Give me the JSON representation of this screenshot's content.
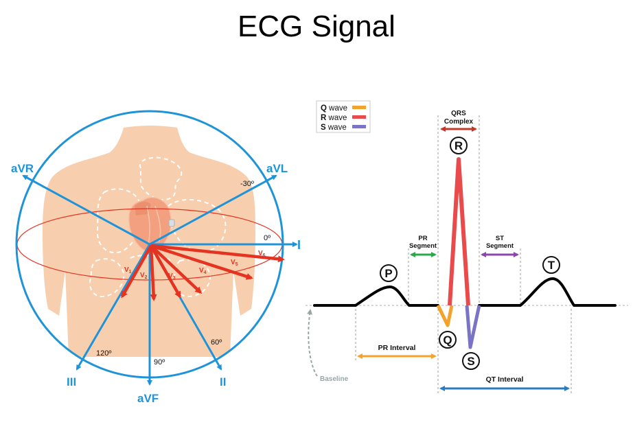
{
  "title": "ECG Signal",
  "colors": {
    "lead_blue": "#1f93d8",
    "chest_red": "#e53322",
    "skin": "#f7cfae",
    "q_wave": "#f3a32c",
    "r_wave": "#e94a4c",
    "s_wave": "#7b73c6",
    "pr_segment": "#2aa84a",
    "st_segment": "#8e44ad",
    "qrs_complex": "#c0392b",
    "pr_interval": "#f3a32c",
    "qt_interval": "#2b7bbf",
    "baseline": "#9aa5a5"
  },
  "leads": {
    "avr": "aVR",
    "avl": "aVL",
    "i": "I",
    "ii": "II",
    "iii": "III",
    "avf": "aVF",
    "angle_neg30": "-30º",
    "angle_0": "0º",
    "angle_60": "60º",
    "angle_90": "90º",
    "angle_120": "120º"
  },
  "chest_leads": {
    "v1": {
      "base": "V",
      "sub": "1"
    },
    "v2": {
      "base": "V",
      "sub": "2"
    },
    "v3": {
      "base": "V",
      "sub": "3"
    },
    "v4": {
      "base": "V",
      "sub": "4"
    },
    "v5": {
      "base": "V",
      "sub": "5"
    },
    "v6": {
      "base": "V",
      "sub": "6"
    }
  },
  "legend": {
    "q": {
      "key": "Q",
      "text": " wave"
    },
    "r": {
      "key": "R",
      "text": " wave"
    },
    "s": {
      "key": "S",
      "text": " wave"
    }
  },
  "waves": {
    "p": "P",
    "q": "Q",
    "r": "R",
    "s": "S",
    "t": "T"
  },
  "intervals": {
    "qrs_line1": "QRS",
    "qrs_line2": "Complex",
    "pr_seg_line1": "PR",
    "pr_seg_line2": "Segment",
    "st_seg_line1": "ST",
    "st_seg_line2": "Segment",
    "pr_interval": "PR Interval",
    "qt_interval": "QT Interval",
    "baseline": "Baseline"
  }
}
